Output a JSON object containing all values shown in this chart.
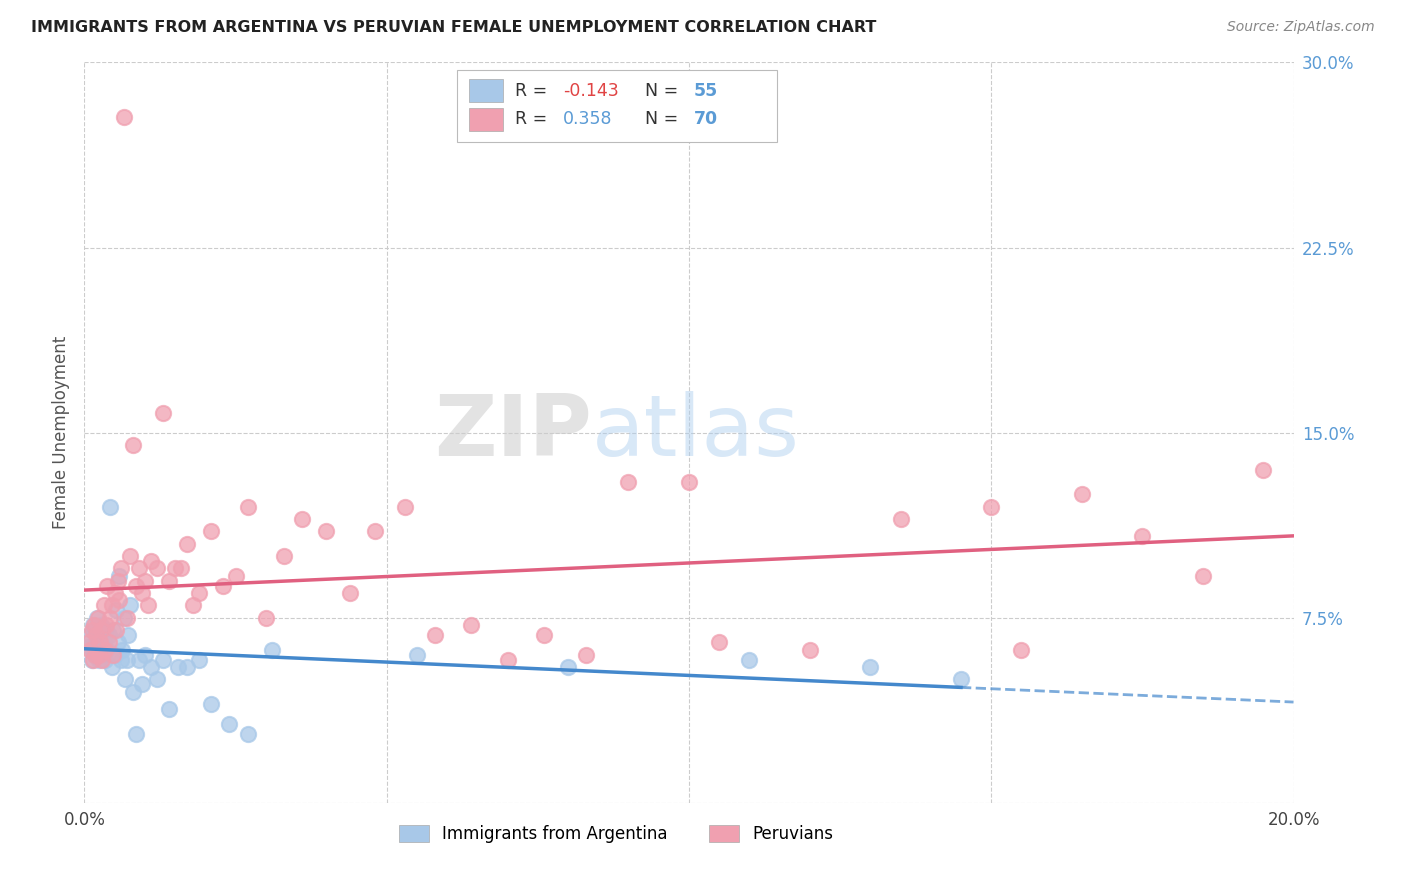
{
  "title": "IMMIGRANTS FROM ARGENTINA VS PERUVIAN FEMALE UNEMPLOYMENT CORRELATION CHART",
  "source": "Source: ZipAtlas.com",
  "ylabel": "Female Unemployment",
  "xlim": [
    0.0,
    0.2
  ],
  "ylim": [
    0.0,
    0.3
  ],
  "xticks": [
    0.0,
    0.05,
    0.1,
    0.15,
    0.2
  ],
  "yticks": [
    0.0,
    0.075,
    0.15,
    0.225,
    0.3
  ],
  "ytick_labels": [
    "",
    "7.5%",
    "15.0%",
    "22.5%",
    "30.0%"
  ],
  "xtick_labels": [
    "0.0%",
    "",
    "",
    "",
    "20.0%"
  ],
  "argentina_R": -0.143,
  "argentina_N": 55,
  "peru_R": 0.358,
  "peru_N": 70,
  "argentina_color": "#a8c8e8",
  "peru_color": "#f0a0b0",
  "argentina_line_color": "#4488cc",
  "peru_line_color": "#e06080",
  "watermark_zip": "ZIP",
  "watermark_atlas": "atlas",
  "legend_label_argentina": "Immigrants from Argentina",
  "legend_label_peru": "Peruvians",
  "argentina_x": [
    0.0008,
    0.001,
    0.0012,
    0.0014,
    0.0015,
    0.0016,
    0.0018,
    0.002,
    0.0021,
    0.0022,
    0.0024,
    0.0025,
    0.0026,
    0.0028,
    0.003,
    0.0032,
    0.0034,
    0.0035,
    0.0038,
    0.004,
    0.0042,
    0.0045,
    0.0048,
    0.005,
    0.0052,
    0.0055,
    0.0058,
    0.006,
    0.0062,
    0.0065,
    0.0068,
    0.007,
    0.0072,
    0.0075,
    0.008,
    0.0085,
    0.009,
    0.0095,
    0.01,
    0.011,
    0.012,
    0.013,
    0.014,
    0.0155,
    0.017,
    0.019,
    0.021,
    0.024,
    0.027,
    0.031,
    0.055,
    0.08,
    0.11,
    0.13,
    0.145
  ],
  "argentina_y": [
    0.063,
    0.068,
    0.058,
    0.072,
    0.062,
    0.07,
    0.06,
    0.065,
    0.075,
    0.06,
    0.068,
    0.058,
    0.063,
    0.072,
    0.06,
    0.065,
    0.058,
    0.07,
    0.062,
    0.068,
    0.12,
    0.055,
    0.07,
    0.06,
    0.078,
    0.065,
    0.092,
    0.058,
    0.062,
    0.075,
    0.05,
    0.058,
    0.068,
    0.08,
    0.045,
    0.028,
    0.058,
    0.048,
    0.06,
    0.055,
    0.05,
    0.058,
    0.038,
    0.055,
    0.055,
    0.058,
    0.04,
    0.032,
    0.028,
    0.062,
    0.06,
    0.055,
    0.058,
    0.055,
    0.05
  ],
  "peru_x": [
    0.0008,
    0.001,
    0.0012,
    0.0014,
    0.0016,
    0.0018,
    0.002,
    0.0022,
    0.0024,
    0.0026,
    0.0028,
    0.003,
    0.0032,
    0.0034,
    0.0036,
    0.0038,
    0.004,
    0.0042,
    0.0045,
    0.0048,
    0.005,
    0.0052,
    0.0055,
    0.0058,
    0.006,
    0.0065,
    0.007,
    0.0075,
    0.008,
    0.0085,
    0.009,
    0.0095,
    0.01,
    0.0105,
    0.011,
    0.012,
    0.013,
    0.014,
    0.015,
    0.016,
    0.017,
    0.018,
    0.019,
    0.021,
    0.023,
    0.025,
    0.027,
    0.03,
    0.033,
    0.036,
    0.04,
    0.044,
    0.048,
    0.053,
    0.058,
    0.064,
    0.07,
    0.076,
    0.083,
    0.09,
    0.1,
    0.105,
    0.12,
    0.135,
    0.15,
    0.155,
    0.165,
    0.175,
    0.185,
    0.195
  ],
  "peru_y": [
    0.065,
    0.062,
    0.07,
    0.058,
    0.072,
    0.06,
    0.068,
    0.075,
    0.06,
    0.065,
    0.07,
    0.058,
    0.08,
    0.062,
    0.072,
    0.088,
    0.065,
    0.075,
    0.08,
    0.06,
    0.085,
    0.07,
    0.09,
    0.082,
    0.095,
    0.278,
    0.075,
    0.1,
    0.145,
    0.088,
    0.095,
    0.085,
    0.09,
    0.08,
    0.098,
    0.095,
    0.158,
    0.09,
    0.095,
    0.095,
    0.105,
    0.08,
    0.085,
    0.11,
    0.088,
    0.092,
    0.12,
    0.075,
    0.1,
    0.115,
    0.11,
    0.085,
    0.11,
    0.12,
    0.068,
    0.072,
    0.058,
    0.068,
    0.06,
    0.13,
    0.13,
    0.065,
    0.062,
    0.115,
    0.12,
    0.062,
    0.125,
    0.108,
    0.092,
    0.135
  ]
}
